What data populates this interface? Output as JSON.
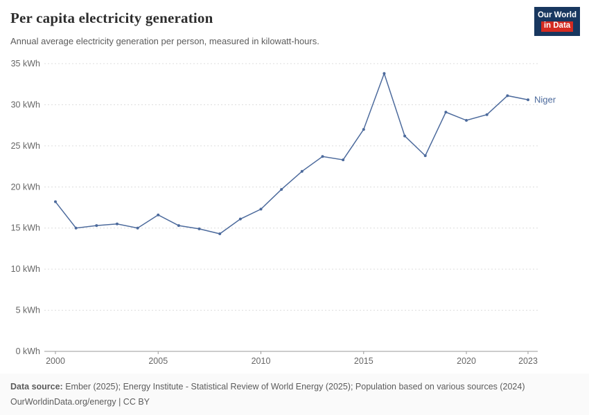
{
  "header": {
    "title": "Per capita electricity generation",
    "subtitle": "Annual average electricity generation per person, measured in kilowatt-hours.",
    "logo": {
      "line1": "Our World",
      "line2": "in Data"
    }
  },
  "chart_data": {
    "type": "line",
    "title": "Per capita electricity generation",
    "xlabel": "",
    "ylabel": "kWh",
    "ylim": [
      0,
      35
    ],
    "yticks": [
      0,
      5,
      10,
      15,
      20,
      25,
      30,
      35
    ],
    "ytick_format": "{v} kWh",
    "xticks": [
      2000,
      2005,
      2010,
      2015,
      2020,
      2023
    ],
    "grid": "dashed-horizontal",
    "legend_position": "end-of-line-label",
    "x": [
      2000,
      2001,
      2002,
      2003,
      2004,
      2005,
      2006,
      2007,
      2008,
      2009,
      2010,
      2011,
      2012,
      2013,
      2014,
      2015,
      2016,
      2017,
      2018,
      2019,
      2020,
      2021,
      2022,
      2023
    ],
    "series": [
      {
        "name": "Niger",
        "color": "#4c6a9c",
        "values": [
          18.2,
          15.0,
          15.3,
          15.5,
          15.0,
          16.6,
          15.3,
          14.9,
          14.3,
          16.1,
          17.3,
          19.7,
          21.9,
          23.7,
          23.3,
          27.0,
          33.8,
          26.2,
          23.8,
          29.1,
          28.1,
          28.8,
          31.1,
          30.6
        ]
      }
    ]
  },
  "footer": {
    "datasource_label": "Data source:",
    "datasource_text": " Ember (2025); Energy Institute - Statistical Review of World Energy (2025); Population based on various sources (2024)",
    "license_text": "OurWorldinData.org/energy | CC BY"
  }
}
